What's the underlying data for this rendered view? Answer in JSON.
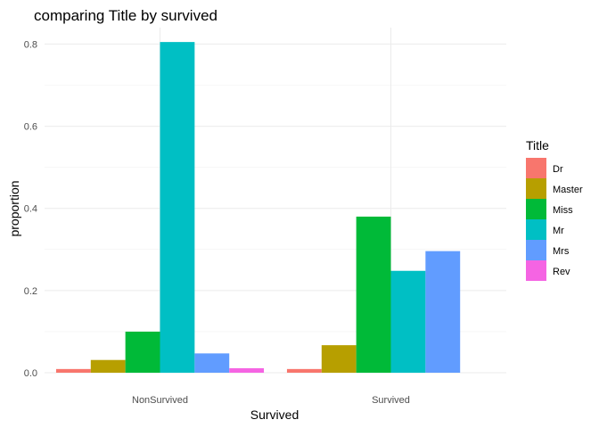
{
  "chart_data": {
    "type": "bar",
    "title": "comparing Title by survived",
    "xlabel": "Survived",
    "ylabel": "proportion",
    "categories": [
      "NonSurvived",
      "Survived"
    ],
    "series": [
      {
        "name": "Dr",
        "values": [
          0.009,
          0.009
        ],
        "color": "#F8766D"
      },
      {
        "name": "Master",
        "values": [
          0.031,
          0.067
        ],
        "color": "#B79F00"
      },
      {
        "name": "Miss",
        "values": [
          0.1,
          0.38
        ],
        "color": "#00BA38"
      },
      {
        "name": "Mr",
        "values": [
          0.805,
          0.248
        ],
        "color": "#00BFC4"
      },
      {
        "name": "Mrs",
        "values": [
          0.047,
          0.296
        ],
        "color": "#619CFF"
      },
      {
        "name": "Rev",
        "values": [
          0.011,
          0
        ],
        "color": "#F564E3"
      }
    ],
    "ylim": [
      0,
      0.84
    ],
    "yticks": [
      0.0,
      0.2,
      0.4,
      0.6,
      0.8
    ],
    "ytick_labels": [
      "0.0",
      "0.2",
      "0.4",
      "0.6",
      "0.8"
    ],
    "grid": true,
    "legend": {
      "title": "Title",
      "position": "right"
    }
  }
}
